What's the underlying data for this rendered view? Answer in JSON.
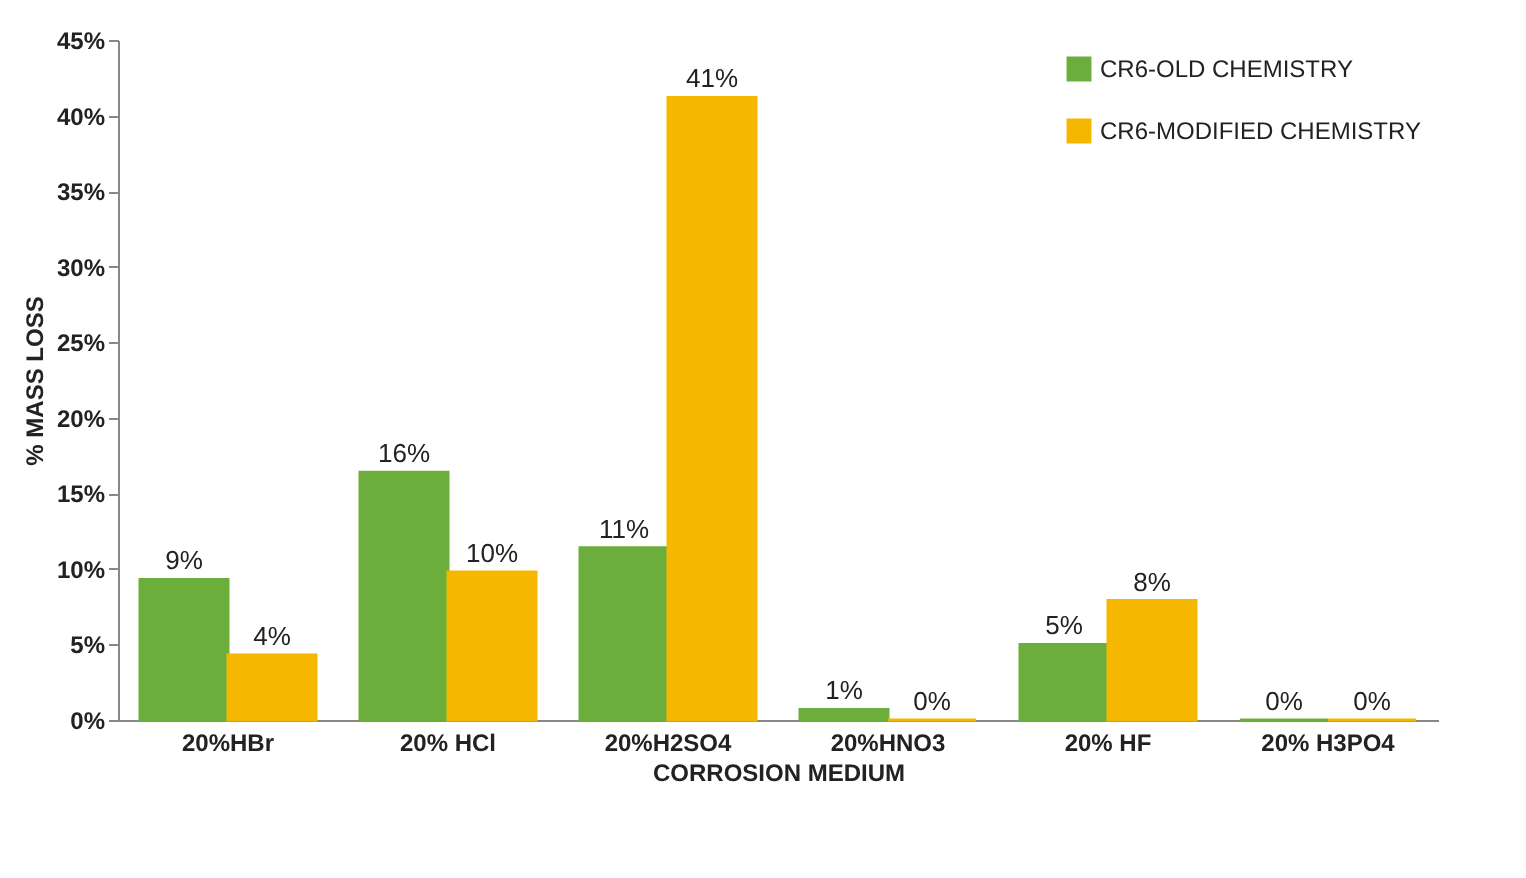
{
  "chart_data": {
    "type": "bar",
    "xlabel": "CORROSION MEDIUM",
    "ylabel": "% MASS LOSS",
    "categories": [
      "20%HBr",
      "20% HCl",
      "20%H2SO4",
      "20%HNO3",
      "20% HF",
      "20% H3PO4"
    ],
    "series": [
      {
        "name": "CR6-OLD CHEMISTRY",
        "color": "#6cae3b",
        "values": [
          9.3,
          16.4,
          11.4,
          0.7,
          5,
          0
        ],
        "value_labels": [
          "9%",
          "16%",
          "11%",
          "1%",
          "5%",
          "0%"
        ]
      },
      {
        "name": "CR6-MODIFIED CHEMISTRY",
        "color": "#f5b700",
        "values": [
          4.3,
          9.8,
          41.2,
          0,
          7.9,
          0
        ],
        "value_labels": [
          "4%",
          "10%",
          "41%",
          "0%",
          "8%",
          "0%"
        ]
      }
    ],
    "ylim": [
      0,
      45
    ],
    "yticks": [
      {
        "value": 0,
        "label": "0%"
      },
      {
        "value": 5,
        "label": "5%"
      },
      {
        "value": 10,
        "label": "10%"
      },
      {
        "value": 15,
        "label": "15%"
      },
      {
        "value": 20,
        "label": "20%"
      },
      {
        "value": 25,
        "label": "25%"
      },
      {
        "value": 30,
        "label": "30%"
      },
      {
        "value": 35,
        "label": "35%"
      },
      {
        "value": 40,
        "label": "40%"
      },
      {
        "value": 45,
        "label": "45%"
      }
    ],
    "grid": false,
    "legend": "top right"
  }
}
